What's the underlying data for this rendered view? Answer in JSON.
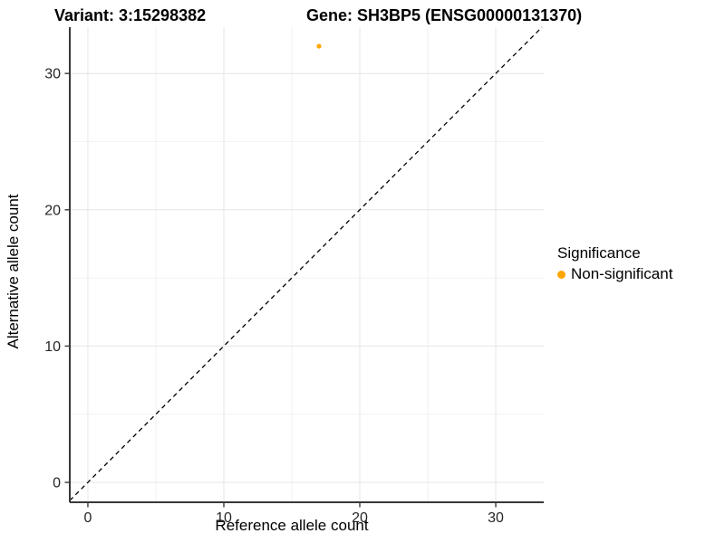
{
  "titles": {
    "variant": "Variant: 3:15298382",
    "gene": "Gene: SH3BP5 (ENSG00000131370)"
  },
  "axes": {
    "x_label": "Reference allele count",
    "y_label": "Alternative allele count"
  },
  "legend": {
    "title": "Significance",
    "items": [
      {
        "label": "Non-significant",
        "color": "#FFA500"
      }
    ]
  },
  "chart_data": {
    "type": "scatter",
    "title": "Variant: 3:15298382 | Gene: SH3BP5 (ENSG00000131370)",
    "xlabel": "Reference allele count",
    "ylabel": "Alternative allele count",
    "series": [
      {
        "name": "Non-significant",
        "color": "#FFA500",
        "points": [
          {
            "x": 17,
            "y": 32
          }
        ]
      }
    ],
    "reference_line": {
      "type": "identity",
      "slope": 1,
      "intercept": 0,
      "style": "dashed",
      "color": "#000000"
    },
    "x_ticks": [
      0,
      10,
      20,
      30
    ],
    "y_ticks": [
      0,
      10,
      20,
      30
    ],
    "x_minor_ticks": [
      5,
      15,
      25
    ],
    "y_minor_ticks": [
      5,
      15,
      25
    ],
    "xlim": [
      -1.33,
      33.53
    ],
    "ylim": [
      -1.46,
      33.4
    ],
    "grid": true,
    "legend_position": "right",
    "colors": {
      "grid_major": "#E6E6E6",
      "grid_minor": "#F2F2F2",
      "axis_line": "#383838",
      "tick_mark": "#383838",
      "tick_label": "#262626"
    }
  }
}
